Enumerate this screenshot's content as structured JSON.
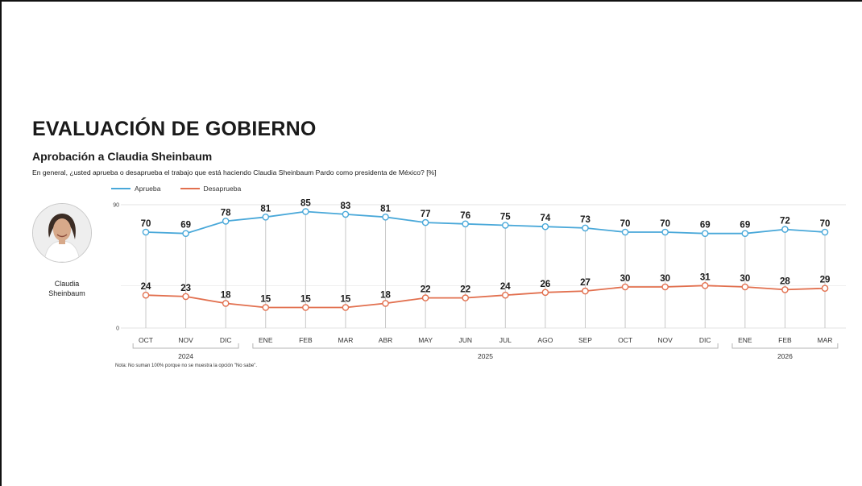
{
  "header": {
    "title": "EVALUACIÓN DE GOBIERNO",
    "subtitle": "Aprobación a Claudia Sheinbaum",
    "question": "En general, ¿usted aprueba o desaprueba el trabajo que está haciendo Claudia Sheinbaum Pardo como presidenta de México? [%]"
  },
  "person": {
    "name_line1": "Claudia",
    "name_line2": "Sheinbaum"
  },
  "note": "Nota: No suman 100% porque no se muestra la opción \"No sabe\".",
  "colors": {
    "aprueba": "#49a8d9",
    "desaprueba": "#e2704f",
    "grid": "#e3e3e3",
    "axis": "#c8c8c8"
  },
  "chart_data": {
    "type": "line",
    "title": "Aprobación a Claudia Sheinbaum",
    "categories": [
      "OCT",
      "NOV",
      "DIC",
      "ENE",
      "FEB",
      "MAR",
      "ABR",
      "MAY",
      "JUN",
      "JUL",
      "AGO",
      "SEP",
      "OCT",
      "NOV",
      "DIC",
      "ENE",
      "FEB",
      "MAR"
    ],
    "year_groups": [
      {
        "label": "2024",
        "from": 0,
        "to": 2
      },
      {
        "label": "2025",
        "from": 3,
        "to": 14
      },
      {
        "label": "2026",
        "from": 15,
        "to": 17
      }
    ],
    "series": [
      {
        "name": "Aprueba",
        "color": "#49a8d9",
        "values": [
          70,
          69,
          78,
          81,
          85,
          83,
          81,
          77,
          76,
          75,
          74,
          73,
          70,
          70,
          69,
          69,
          72,
          70
        ]
      },
      {
        "name": "Desaprueba",
        "color": "#e2704f",
        "values": [
          24,
          23,
          18,
          15,
          15,
          15,
          18,
          22,
          22,
          24,
          26,
          27,
          30,
          30,
          31,
          30,
          28,
          29
        ]
      }
    ],
    "ylim": [
      0,
      90
    ],
    "yticks": [
      0,
      90
    ],
    "grid": true,
    "legend_position": "top-left",
    "xlabel": "",
    "ylabel": ""
  }
}
